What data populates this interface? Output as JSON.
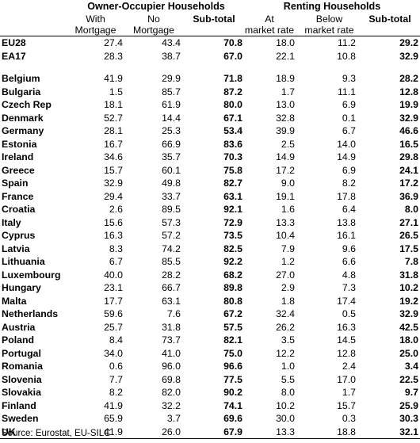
{
  "header": {
    "group_owner": "Owner-Occupier Households",
    "group_renting": "Renting Households",
    "col_with_mortgage": [
      "With",
      "Mortgage"
    ],
    "col_no_mortgage": [
      "No",
      "Mortgage"
    ],
    "col_owner_subtotal": "Sub-total",
    "col_market_rate": [
      "At",
      "market rate"
    ],
    "col_below_market": [
      "Below",
      "market rate"
    ],
    "col_rent_subtotal": "Sub-total"
  },
  "aggregates": [
    {
      "name": "EU28",
      "with_mortgage": "27.4",
      "no_mortgage": "43.4",
      "owner_subtotal": "70.8",
      "market_rate": "18.0",
      "below_market": "11.2",
      "rent_subtotal": "29.2"
    },
    {
      "name": "EA17",
      "with_mortgage": "28.3",
      "no_mortgage": "38.7",
      "owner_subtotal": "67.0",
      "market_rate": "22.1",
      "below_market": "10.8",
      "rent_subtotal": "32.9"
    }
  ],
  "countries": [
    {
      "name": "Belgium",
      "with_mortgage": "41.9",
      "no_mortgage": "29.9",
      "owner_subtotal": "71.8",
      "market_rate": "18.9",
      "below_market": "9.3",
      "rent_subtotal": "28.2"
    },
    {
      "name": "Bulgaria",
      "with_mortgage": "1.5",
      "no_mortgage": "85.7",
      "owner_subtotal": "87.2",
      "market_rate": "1.7",
      "below_market": "11.1",
      "rent_subtotal": "12.8"
    },
    {
      "name": "Czech Rep",
      "with_mortgage": "18.1",
      "no_mortgage": "61.9",
      "owner_subtotal": "80.0",
      "market_rate": "13.0",
      "below_market": "6.9",
      "rent_subtotal": "19.9"
    },
    {
      "name": "Denmark",
      "with_mortgage": "52.7",
      "no_mortgage": "14.4",
      "owner_subtotal": "67.1",
      "market_rate": "32.8",
      "below_market": "0.1",
      "rent_subtotal": "32.9"
    },
    {
      "name": "Germany",
      "with_mortgage": "28.1",
      "no_mortgage": "25.3",
      "owner_subtotal": "53.4",
      "market_rate": "39.9",
      "below_market": "6.7",
      "rent_subtotal": "46.6"
    },
    {
      "name": "Estonia",
      "with_mortgage": "16.7",
      "no_mortgage": "66.9",
      "owner_subtotal": "83.6",
      "market_rate": "2.5",
      "below_market": "14.0",
      "rent_subtotal": "16.5"
    },
    {
      "name": "Ireland",
      "with_mortgage": "34.6",
      "no_mortgage": "35.7",
      "owner_subtotal": "70.3",
      "market_rate": "14.9",
      "below_market": "14.9",
      "rent_subtotal": "29.8"
    },
    {
      "name": "Greece",
      "with_mortgage": "15.7",
      "no_mortgage": "60.1",
      "owner_subtotal": "75.8",
      "market_rate": "17.2",
      "below_market": "6.9",
      "rent_subtotal": "24.1"
    },
    {
      "name": "Spain",
      "with_mortgage": "32.9",
      "no_mortgage": "49.8",
      "owner_subtotal": "82.7",
      "market_rate": "9.0",
      "below_market": "8.2",
      "rent_subtotal": "17.2"
    },
    {
      "name": "France",
      "with_mortgage": "29.4",
      "no_mortgage": "33.7",
      "owner_subtotal": "63.1",
      "market_rate": "19.1",
      "below_market": "17.8",
      "rent_subtotal": "36.9"
    },
    {
      "name": "Croatia",
      "with_mortgage": "2.6",
      "no_mortgage": "89.5",
      "owner_subtotal": "92.1",
      "market_rate": "1.6",
      "below_market": "6.4",
      "rent_subtotal": "8.0"
    },
    {
      "name": "Italy",
      "with_mortgage": "15.6",
      "no_mortgage": "57.3",
      "owner_subtotal": "72.9",
      "market_rate": "13.3",
      "below_market": "13.8",
      "rent_subtotal": "27.1"
    },
    {
      "name": "Cyprus",
      "with_mortgage": "16.3",
      "no_mortgage": "57.2",
      "owner_subtotal": "73.5",
      "market_rate": "10.4",
      "below_market": "16.1",
      "rent_subtotal": "26.5"
    },
    {
      "name": "Latvia",
      "with_mortgage": "8.3",
      "no_mortgage": "74.2",
      "owner_subtotal": "82.5",
      "market_rate": "7.9",
      "below_market": "9.6",
      "rent_subtotal": "17.5"
    },
    {
      "name": "Lithuania",
      "with_mortgage": "6.7",
      "no_mortgage": "85.5",
      "owner_subtotal": "92.2",
      "market_rate": "1.2",
      "below_market": "6.6",
      "rent_subtotal": "7.8"
    },
    {
      "name": "Luxembourg",
      "with_mortgage": "40.0",
      "no_mortgage": "28.2",
      "owner_subtotal": "68.2",
      "market_rate": "27.0",
      "below_market": "4.8",
      "rent_subtotal": "31.8"
    },
    {
      "name": "Hungary",
      "with_mortgage": "23.1",
      "no_mortgage": "66.7",
      "owner_subtotal": "89.8",
      "market_rate": "2.9",
      "below_market": "7.3",
      "rent_subtotal": "10.2"
    },
    {
      "name": "Malta",
      "with_mortgage": "17.7",
      "no_mortgage": "63.1",
      "owner_subtotal": "80.8",
      "market_rate": "1.8",
      "below_market": "17.4",
      "rent_subtotal": "19.2"
    },
    {
      "name": "Netherlands",
      "with_mortgage": "59.6",
      "no_mortgage": "7.6",
      "owner_subtotal": "67.2",
      "market_rate": "32.4",
      "below_market": "0.5",
      "rent_subtotal": "32.9"
    },
    {
      "name": "Austria",
      "with_mortgage": "25.7",
      "no_mortgage": "31.8",
      "owner_subtotal": "57.5",
      "market_rate": "26.2",
      "below_market": "16.3",
      "rent_subtotal": "42.5"
    },
    {
      "name": "Poland",
      "with_mortgage": "8.4",
      "no_mortgage": "73.7",
      "owner_subtotal": "82.1",
      "market_rate": "3.5",
      "below_market": "14.5",
      "rent_subtotal": "18.0"
    },
    {
      "name": "Portugal",
      "with_mortgage": "34.0",
      "no_mortgage": "41.0",
      "owner_subtotal": "75.0",
      "market_rate": "12.2",
      "below_market": "12.8",
      "rent_subtotal": "25.0"
    },
    {
      "name": "Romania",
      "with_mortgage": "0.6",
      "no_mortgage": "96.0",
      "owner_subtotal": "96.6",
      "market_rate": "1.0",
      "below_market": "2.4",
      "rent_subtotal": "3.4"
    },
    {
      "name": "Slovenia",
      "with_mortgage": "7.7",
      "no_mortgage": "69.8",
      "owner_subtotal": "77.5",
      "market_rate": "5.5",
      "below_market": "17.0",
      "rent_subtotal": "22.5"
    },
    {
      "name": "Slovakia",
      "with_mortgage": "8.2",
      "no_mortgage": "82.0",
      "owner_subtotal": "90.2",
      "market_rate": "8.0",
      "below_market": "1.7",
      "rent_subtotal": "9.7"
    },
    {
      "name": "Finland",
      "with_mortgage": "41.9",
      "no_mortgage": "32.2",
      "owner_subtotal": "74.1",
      "market_rate": "10.2",
      "below_market": "15.7",
      "rent_subtotal": "25.9"
    },
    {
      "name": "Sweden",
      "with_mortgage": "65.9",
      "no_mortgage": "3.7",
      "owner_subtotal": "69.6",
      "market_rate": "30.0",
      "below_market": "0.3",
      "rent_subtotal": "30.3"
    },
    {
      "name": "UK",
      "with_mortgage": "41.9",
      "no_mortgage": "26.0",
      "owner_subtotal": "67.9",
      "market_rate": "13.3",
      "below_market": "18.8",
      "rent_subtotal": "32.1"
    }
  ],
  "source": "Source: Eurostat, EU-SILC"
}
